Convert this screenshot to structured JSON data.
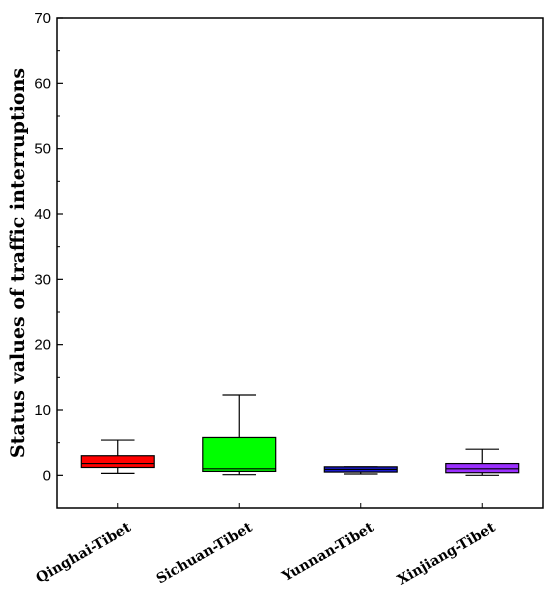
{
  "chart_data": {
    "type": "box",
    "title": "",
    "xlabel": "",
    "ylabel": "Status values of traffic interruptions",
    "ylim": [
      -5,
      70
    ],
    "yticks": [
      0,
      10,
      20,
      30,
      40,
      50,
      60,
      70
    ],
    "yminor_step": 5,
    "grid": false,
    "categories": [
      "Qinghai-Tibet",
      "Sichuan-Tibet",
      "Yunnan-Tibet",
      "Xinjiang-Tibet"
    ],
    "series": [
      {
        "category": "Qinghai-Tibet",
        "color": "#ff0000",
        "whisker_low": 0.3,
        "q1": 1.2,
        "median": 1.8,
        "q3": 3.0,
        "whisker_high": 5.4
      },
      {
        "category": "Sichuan-Tibet",
        "color": "#00ff00",
        "whisker_low": 0.1,
        "q1": 0.6,
        "median": 1.0,
        "q3": 5.8,
        "whisker_high": 12.3
      },
      {
        "category": "Yunnan-Tibet",
        "color": "#1a1acc",
        "whisker_low": 0.2,
        "q1": 0.5,
        "median": 0.9,
        "q3": 1.3,
        "whisker_high": 1.3
      },
      {
        "category": "Xinjiang-Tibet",
        "color": "#9b30ff",
        "whisker_low": 0.0,
        "q1": 0.4,
        "median": 1.0,
        "q3": 1.8,
        "whisker_high": 4.0
      }
    ]
  }
}
